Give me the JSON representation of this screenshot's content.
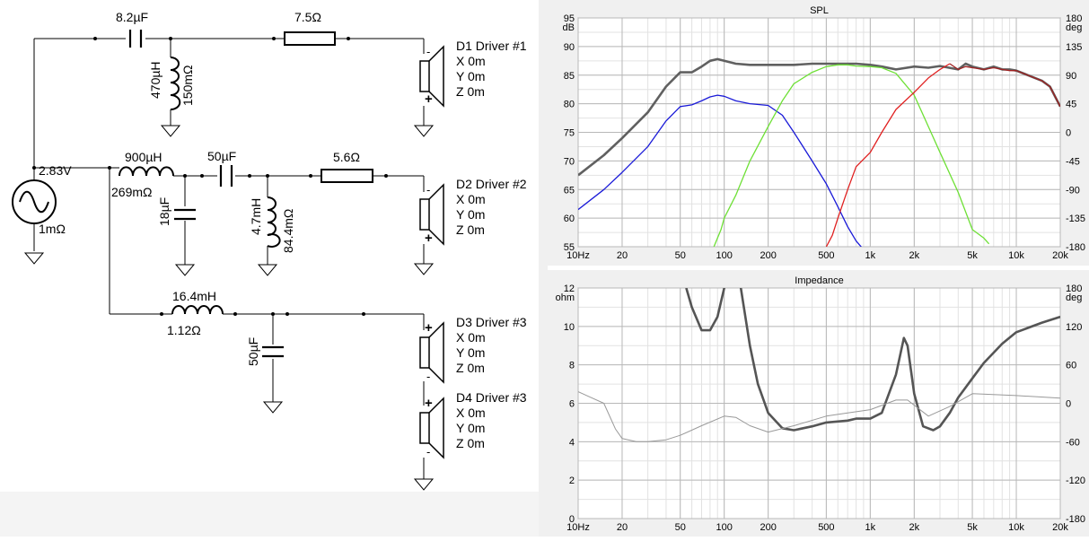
{
  "schematic": {
    "source": {
      "voltage": "2.83V",
      "resistance": "1mΩ"
    },
    "branch1": {
      "cap": "8.2µF",
      "ind": "470µH",
      "ind_r": "150mΩ",
      "res": "7.5Ω",
      "driver": {
        "name": "D1 Driver #1",
        "x": "X 0m",
        "y": "Y 0m",
        "z": "Z 0m"
      }
    },
    "branch2": {
      "ind": "900µH",
      "ind_r": "269mΩ",
      "shunt_cap": "18µF",
      "cap": "50µF",
      "ind2": "4.7mH",
      "ind2_r": "84.4mΩ",
      "res": "5.6Ω",
      "driver": {
        "name": "D2 Driver #2",
        "x": "X 0m",
        "y": "Y 0m",
        "z": "Z 0m"
      }
    },
    "branch3": {
      "ind": "16.4mH",
      "ind_r": "1.12Ω",
      "cap": "50µF",
      "driver3": {
        "name": "D3 Driver #3",
        "x": "X 0m",
        "y": "Y 0m",
        "z": "Z 0m"
      },
      "driver4": {
        "name": "D4 Driver #3",
        "x": "X 0m",
        "y": "Y 0m",
        "z": "Z 0m"
      }
    }
  },
  "chart_data": [
    {
      "type": "line",
      "title": "SPL",
      "xscale": "log",
      "xlim": [
        10,
        20000
      ],
      "x_ticks": [
        "10Hz",
        "20",
        "50",
        "100",
        "200",
        "500",
        "1k",
        "2k",
        "5k",
        "10k",
        "20k"
      ],
      "ylabel": "dB",
      "ylim": [
        55,
        95
      ],
      "y_ticks": [
        "95",
        "90",
        "85",
        "80",
        "75",
        "70",
        "65",
        "60",
        "55"
      ],
      "ylabel_right": "deg",
      "y2lim": [
        -180,
        180
      ],
      "y2_ticks": [
        "180",
        "135",
        "90",
        "45",
        "0",
        "-45",
        "-90",
        "-135",
        "-180"
      ],
      "grid": true,
      "colors": {
        "total": "#606060",
        "woofer": "#1a1ad8",
        "mid": "#6ee036",
        "tweeter": "#e02020",
        "tweeter_hi": "#a02020"
      },
      "series": [
        {
          "key": "total",
          "x": [
            10,
            15,
            20,
            30,
            40,
            50,
            60,
            70,
            80,
            90,
            100,
            120,
            150,
            200,
            250,
            300,
            400,
            500,
            600,
            700,
            800,
            1000,
            1200,
            1500,
            2000,
            2500,
            3000,
            4000,
            4500,
            5000,
            6000,
            7000,
            8000,
            9000,
            10000,
            12000,
            15000,
            17000,
            20000
          ],
          "y": [
            67.5,
            71,
            74,
            78.5,
            83,
            85.5,
            85.5,
            86.5,
            87.5,
            87.8,
            87.5,
            87,
            86.8,
            86.8,
            86.8,
            86.8,
            87,
            87,
            87,
            87,
            87,
            86.8,
            86.5,
            86,
            86.5,
            86.3,
            86.6,
            86,
            87,
            86.5,
            86,
            86.5,
            86,
            86,
            85.8,
            85,
            84,
            83,
            79.5
          ]
        },
        {
          "key": "woofer",
          "x": [
            10,
            15,
            20,
            30,
            40,
            50,
            60,
            70,
            80,
            90,
            100,
            120,
            150,
            200,
            250,
            300,
            400,
            500,
            600,
            700,
            800,
            900,
            1000
          ],
          "y": [
            61.5,
            65,
            68,
            72.5,
            77,
            79.5,
            79.8,
            80.5,
            81.2,
            81.5,
            81.3,
            80.5,
            80,
            79.7,
            78,
            75,
            70,
            66,
            62,
            58.5,
            56,
            54.5,
            53
          ]
        },
        {
          "key": "mid",
          "x": [
            85,
            95,
            100,
            120,
            150,
            200,
            250,
            300,
            400,
            500,
            600,
            700,
            800,
            1000,
            1200,
            1500,
            2000,
            2500,
            3000,
            4000,
            5000,
            6000,
            6500
          ],
          "y": [
            55,
            58,
            60,
            64,
            70,
            76,
            80.5,
            83.5,
            85.5,
            86.5,
            86.8,
            86.8,
            86.6,
            86.5,
            86.3,
            85.3,
            81.5,
            76,
            71.5,
            64.5,
            58,
            56.5,
            55.5
          ]
        },
        {
          "key": "tweeter",
          "x": [
            500,
            550,
            600,
            700,
            800,
            1000,
            1200,
            1500,
            2000,
            2500,
            3000,
            3500
          ],
          "y": [
            55,
            57,
            60,
            65,
            69,
            71.5,
            75,
            79,
            82,
            84.5,
            86,
            87
          ]
        },
        {
          "key": "tweeter_hi",
          "x": [
            3500,
            4000,
            4500,
            5000,
            6000,
            7000,
            8000,
            9000,
            10000,
            12000,
            15000,
            17000,
            20000
          ],
          "y": [
            87,
            86,
            86.5,
            86.3,
            86,
            86.3,
            86,
            85.8,
            85.8,
            85,
            84,
            83,
            79.5
          ]
        }
      ]
    },
    {
      "type": "line",
      "title": "Impedance",
      "xscale": "log",
      "xlim": [
        10,
        20000
      ],
      "x_ticks": [
        "10Hz",
        "20",
        "50",
        "100",
        "200",
        "500",
        "1k",
        "2k",
        "5k",
        "10k",
        "20k"
      ],
      "ylabel": "ohm",
      "ylim": [
        0,
        12
      ],
      "y_ticks": [
        "12",
        "10",
        "8",
        "6",
        "4",
        "2",
        "0"
      ],
      "ylabel_right": "deg",
      "y2lim": [
        -180,
        180
      ],
      "y2_ticks": [
        "180",
        "120",
        "60",
        "0",
        "-60",
        "-120",
        "-180"
      ],
      "grid": true,
      "colors": {
        "magnitude": "#555555",
        "phase": "#999999"
      },
      "series": [
        {
          "key": "magnitude",
          "x": [
            55,
            60,
            70,
            80,
            90,
            100,
            110,
            130,
            150,
            170,
            200,
            250,
            300,
            400,
            500,
            700,
            800,
            1000,
            1200,
            1500,
            1700,
            1800,
            2000,
            2300,
            2700,
            3000,
            3500,
            4000,
            5000,
            6000,
            8000,
            10000,
            15000,
            20000
          ],
          "y": [
            12,
            11,
            9.8,
            9.8,
            10.5,
            12,
            14,
            12,
            9,
            7,
            5.5,
            4.7,
            4.6,
            4.8,
            5,
            5.1,
            5.2,
            5.2,
            5.5,
            7.5,
            9.4,
            9,
            6.5,
            4.8,
            4.6,
            4.8,
            5.5,
            6.3,
            7.3,
            8.1,
            9.1,
            9.7,
            10.2,
            10.5
          ]
        },
        {
          "key": "phase",
          "x": [
            10,
            12,
            15,
            18,
            20,
            25,
            30,
            40,
            50,
            70,
            100,
            120,
            150,
            200,
            300,
            500,
            700,
            1000,
            1500,
            1800,
            2500,
            3500,
            5000,
            10000,
            20000
          ],
          "y": [
            18,
            10,
            0,
            -40,
            -55,
            -60,
            -60,
            -57,
            -50,
            -35,
            -20,
            -22,
            -35,
            -45,
            -35,
            -20,
            -15,
            -10,
            5,
            5,
            -20,
            -5,
            15,
            12,
            8
          ]
        }
      ]
    }
  ]
}
